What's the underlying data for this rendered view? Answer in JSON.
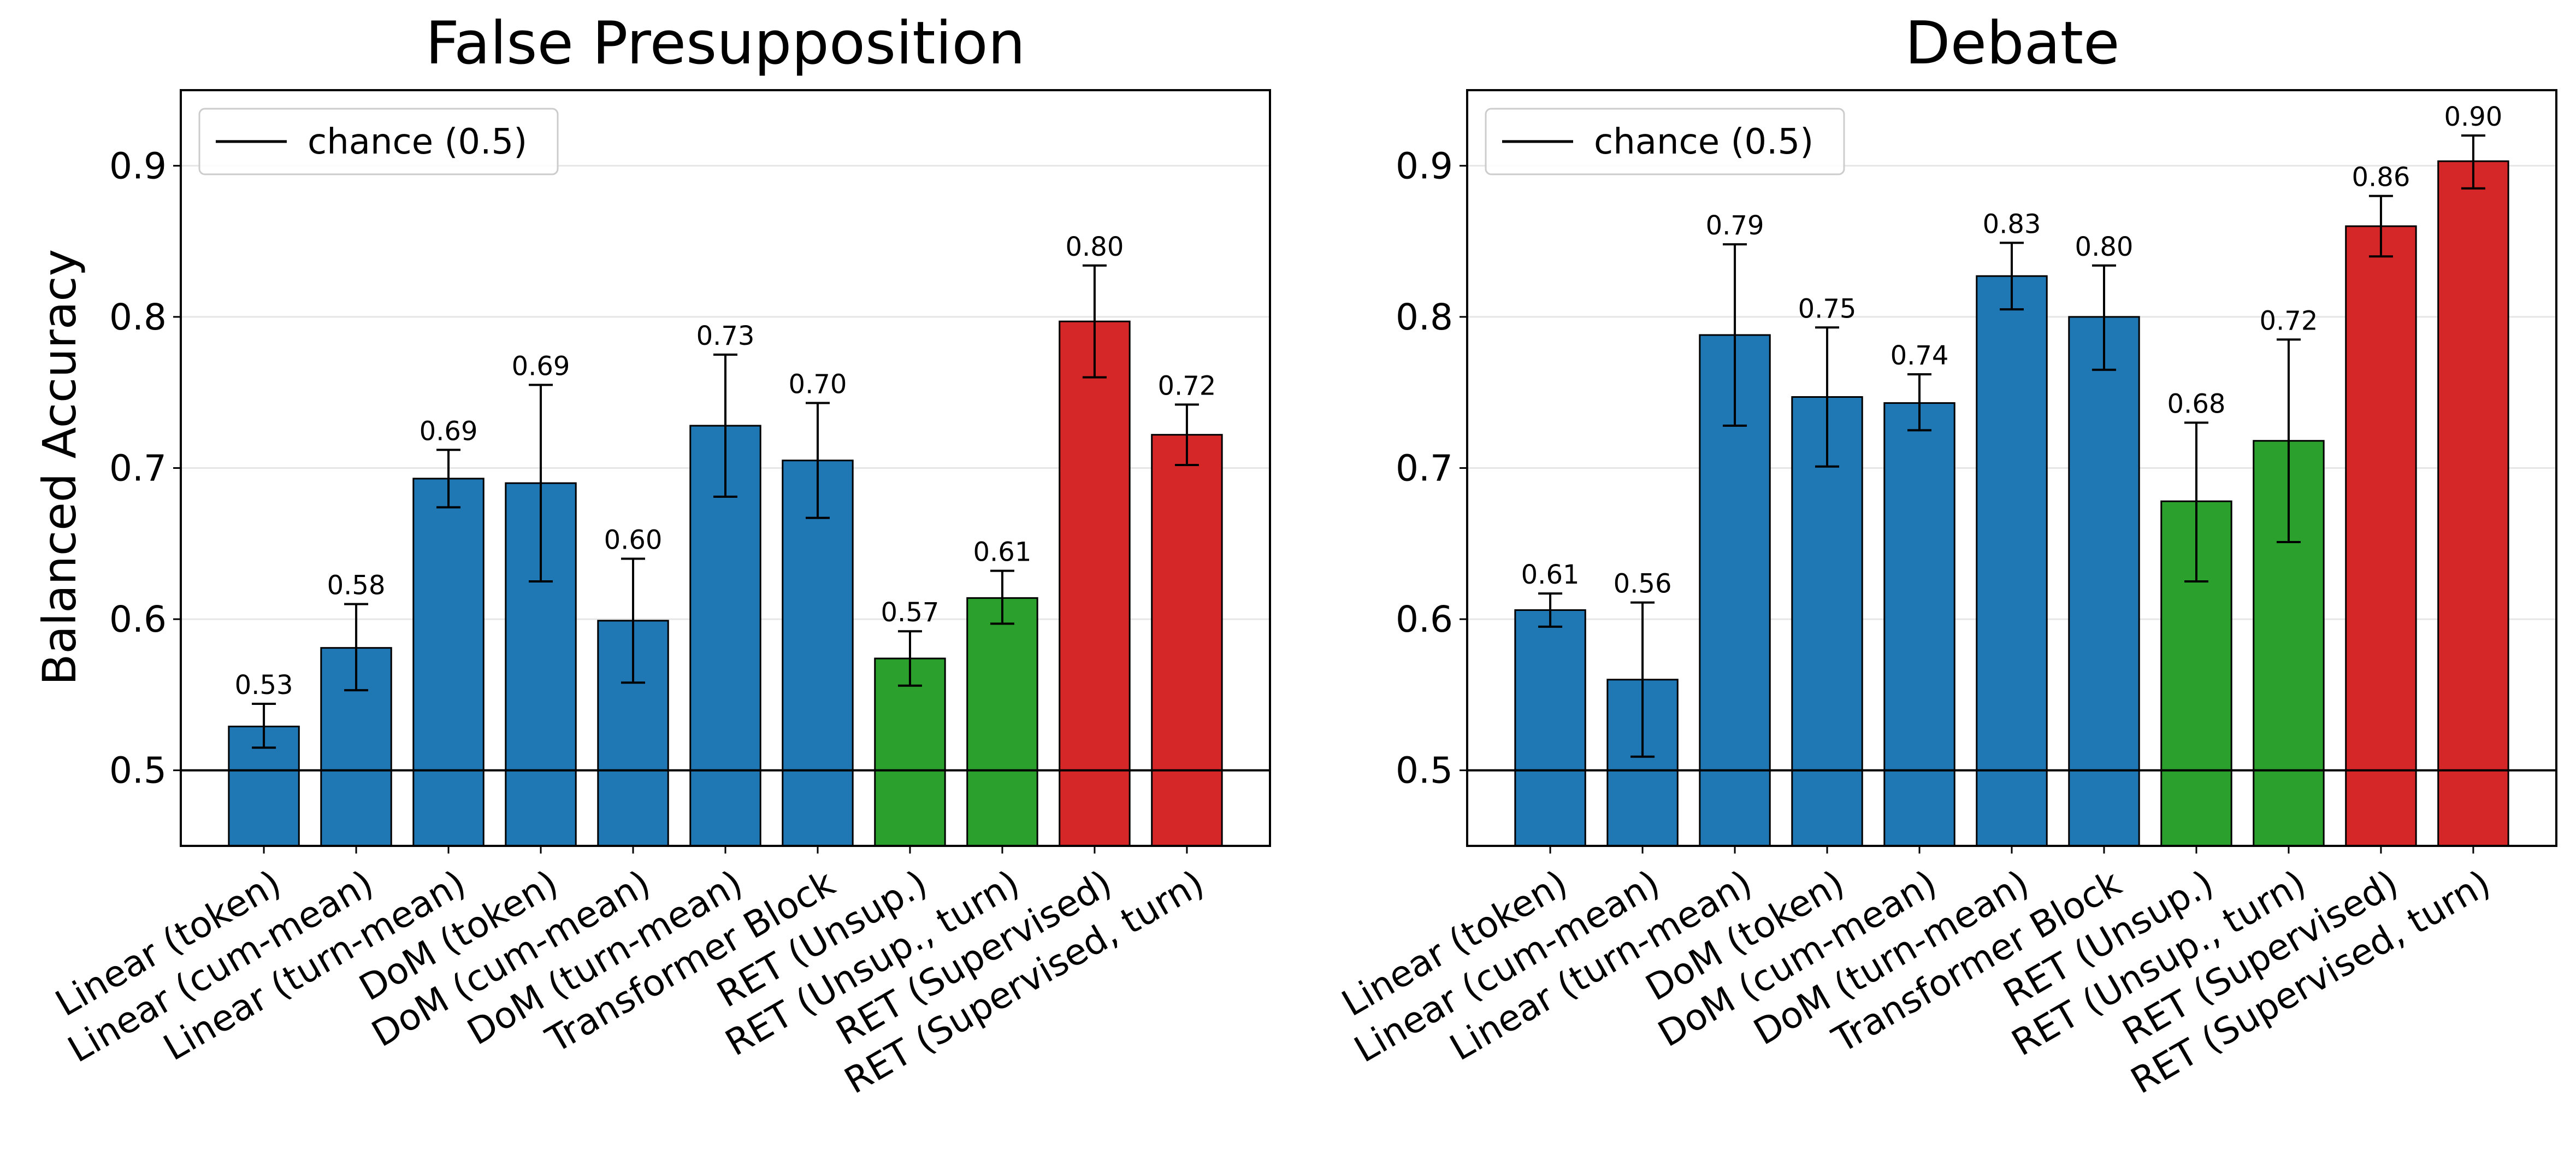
{
  "chart_data": [
    {
      "type": "bar",
      "title": "False Presupposition",
      "ylabel": "Balanced Accuracy",
      "ylim": [
        0.45,
        0.95
      ],
      "yticks": [
        "0.5",
        "0.6",
        "0.7",
        "0.8",
        "0.9"
      ],
      "grid": "horizontal",
      "legend": {
        "position": "top-left",
        "entries": [
          "chance (0.5)"
        ]
      },
      "reference_line": {
        "label": "chance (0.5)",
        "y": 0.5
      },
      "categories": [
        "Linear (token)",
        "Linear (cum-mean)",
        "Linear (turn-mean)",
        "DoM (token)",
        "DoM (cum-mean)",
        "DoM (turn-mean)",
        "Transformer Block",
        "RET (Unsup.)",
        "RET (Unsup., turn)",
        "RET (Supervised)",
        "RET (Supervised, turn)"
      ],
      "values": [
        0.529,
        0.581,
        0.693,
        0.69,
        0.599,
        0.728,
        0.705,
        0.574,
        0.614,
        0.797,
        0.722
      ],
      "error_low": [
        0.515,
        0.553,
        0.674,
        0.625,
        0.558,
        0.681,
        0.667,
        0.556,
        0.597,
        0.76,
        0.702
      ],
      "error_high": [
        0.544,
        0.61,
        0.712,
        0.755,
        0.64,
        0.775,
        0.743,
        0.592,
        0.632,
        0.834,
        0.742
      ],
      "data_labels": [
        "0.53",
        "0.58",
        "0.69",
        "0.69",
        "0.60",
        "0.73",
        "0.70",
        "0.57",
        "0.61",
        "0.80",
        "0.72"
      ],
      "bar_colors": [
        "#1f77b4",
        "#1f77b4",
        "#1f77b4",
        "#1f77b4",
        "#1f77b4",
        "#1f77b4",
        "#1f77b4",
        "#2ca02c",
        "#2ca02c",
        "#d62728",
        "#d62728"
      ]
    },
    {
      "type": "bar",
      "title": "Debate",
      "ylabel": "",
      "ylim": [
        0.45,
        0.95
      ],
      "yticks": [
        "0.5",
        "0.6",
        "0.7",
        "0.8",
        "0.9"
      ],
      "grid": "horizontal",
      "legend": {
        "position": "top-left",
        "entries": [
          "chance (0.5)"
        ]
      },
      "reference_line": {
        "label": "chance (0.5)",
        "y": 0.5
      },
      "categories": [
        "Linear (token)",
        "Linear (cum-mean)",
        "Linear (turn-mean)",
        "DoM (token)",
        "DoM (cum-mean)",
        "DoM (turn-mean)",
        "Transformer Block",
        "RET (Unsup.)",
        "RET (Unsup., turn)",
        "RET (Supervised)",
        "RET (Supervised, turn)"
      ],
      "values": [
        0.606,
        0.56,
        0.788,
        0.747,
        0.743,
        0.827,
        0.8,
        0.678,
        0.718,
        0.86,
        0.903
      ],
      "error_low": [
        0.595,
        0.509,
        0.728,
        0.701,
        0.725,
        0.805,
        0.765,
        0.625,
        0.651,
        0.84,
        0.885
      ],
      "error_high": [
        0.617,
        0.611,
        0.848,
        0.793,
        0.762,
        0.849,
        0.834,
        0.73,
        0.785,
        0.88,
        0.92
      ],
      "data_labels": [
        "0.61",
        "0.56",
        "0.79",
        "0.75",
        "0.74",
        "0.83",
        "0.80",
        "0.68",
        "0.72",
        "0.86",
        "0.90"
      ],
      "bar_colors": [
        "#1f77b4",
        "#1f77b4",
        "#1f77b4",
        "#1f77b4",
        "#1f77b4",
        "#1f77b4",
        "#1f77b4",
        "#2ca02c",
        "#2ca02c",
        "#d62728",
        "#d62728"
      ]
    }
  ]
}
